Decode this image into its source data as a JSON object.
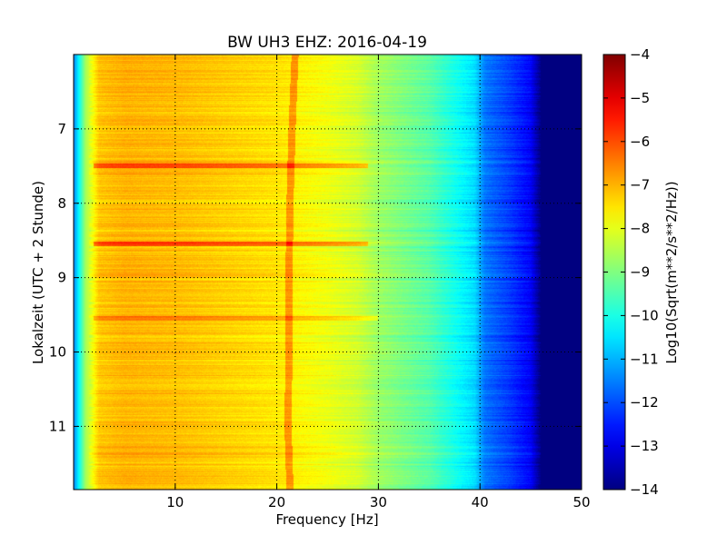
{
  "chart_data": {
    "type": "heatmap",
    "title": "BW UH3 EHZ: 2016-04-19",
    "xlabel": "Frequency [Hz]",
    "ylabel": "Lokalzeit (UTC + 2 Stunde)",
    "xlim": [
      0,
      50
    ],
    "ylim": [
      11.85,
      6.0
    ],
    "y_axis_inverted": true,
    "x_ticks": [
      10,
      20,
      30,
      40,
      50
    ],
    "y_ticks": [
      7,
      8,
      9,
      10,
      11
    ],
    "grid": true,
    "grid_style": "dotted",
    "colormap": "jet",
    "colorbar": {
      "label": "Log10(Sqrt(m**2/s**2/Hz))",
      "range": [
        -14,
        -4
      ],
      "ticks": [
        -14,
        -13,
        -12,
        -11,
        -10,
        -9,
        -8,
        -7,
        -6,
        -5,
        -4
      ]
    },
    "spectral_profile": {
      "description_freq_hz": [
        0,
        0.5,
        1.2,
        2.5,
        5,
        10,
        15,
        20,
        25,
        28,
        30,
        35,
        38,
        39.5,
        40.5,
        43,
        45,
        46,
        50
      ],
      "level_log10": [
        -11.5,
        -10.3,
        -8.6,
        -7.2,
        -7.0,
        -7.1,
        -7.3,
        -7.5,
        -7.9,
        -8.2,
        -8.7,
        -9.4,
        -10.2,
        -10.6,
        -11.6,
        -12.2,
        -12.8,
        -14,
        -14
      ]
    },
    "features": {
      "tonal_line_hz": [
        [
          6.0,
          21.8
        ],
        [
          7.0,
          21.5
        ],
        [
          8.0,
          21.3
        ],
        [
          9.0,
          21.2
        ],
        [
          10.0,
          21.2
        ],
        [
          11.0,
          21.1
        ],
        [
          11.85,
          21.3
        ]
      ],
      "bursts": [
        {
          "time": 7.5,
          "f_max_hz": 29,
          "strength": 1.3
        },
        {
          "time": 8.55,
          "f_max_hz": 29,
          "strength": 1.1
        },
        {
          "time": 9.55,
          "f_max_hz": 30,
          "strength": 0.6
        }
      ]
    }
  }
}
